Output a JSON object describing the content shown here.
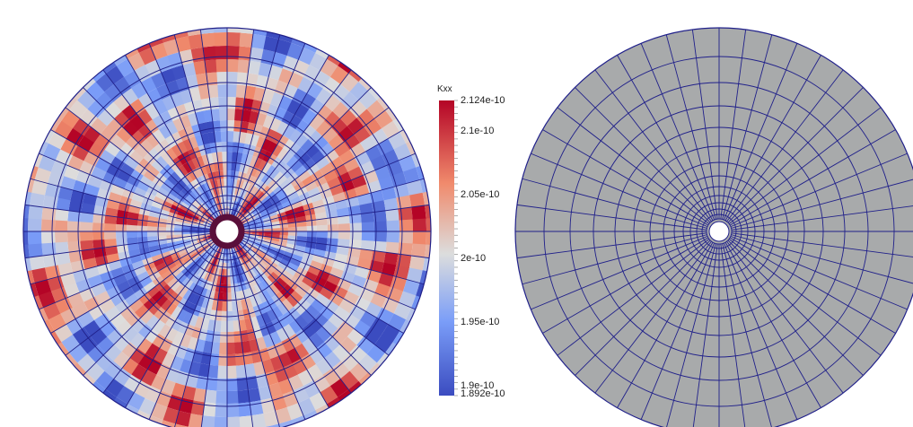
{
  "colorbar": {
    "title": "Kxx",
    "max_label": "2.124e-10",
    "min_label": "1.892e-10",
    "range": [
      1.892e-10,
      2.124e-10
    ],
    "tick_labels": [
      "2.1e-10",
      "2.05e-10",
      "2e-10",
      "1.95e-10",
      "1.9e-10"
    ],
    "tick_values": [
      2.1e-10,
      2.05e-10,
      2e-10,
      1.95e-10,
      1.9e-10
    ],
    "colors": {
      "low": "#3b4cc0",
      "mid": "#dddddd",
      "high": "#b40426",
      "inner_ring": "#5a0f3a"
    }
  },
  "mesh": {
    "line_color": "#20208a",
    "radial_divisions": 48,
    "uniform_fill": "#a8aaab"
  }
}
